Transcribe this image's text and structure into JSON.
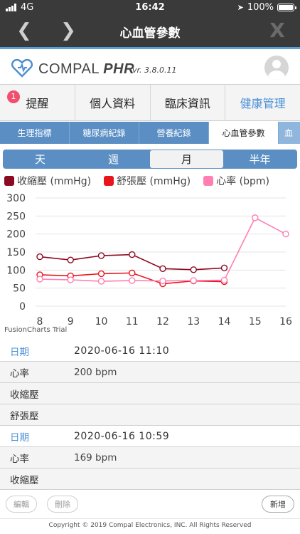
{
  "status_bar": {
    "carrier": "4G",
    "time": "16:42",
    "battery": "100%"
  },
  "nav": {
    "title": "心血管參數",
    "close_label": "X"
  },
  "brand": {
    "name_regular": "COMPAL ",
    "name_bold": "PHR",
    "version": "vr. 3.8.0.11",
    "logo_color": "#4a8fd0"
  },
  "main_tabs": [
    {
      "label": "提醒",
      "badge": "1"
    },
    {
      "label": "個人資料"
    },
    {
      "label": "臨床資訊"
    },
    {
      "label": "健康管理"
    }
  ],
  "sub_tabs": [
    "生理指標",
    "糖尿病紀錄",
    "營養紀錄",
    "心血管參數",
    "血"
  ],
  "period_tabs": [
    "天",
    "週",
    "月",
    "半年"
  ],
  "legend": [
    {
      "label": "收縮壓 (mmHg)",
      "color": "#8b0a22"
    },
    {
      "label": "舒張壓 (mmHg)",
      "color": "#e8161c"
    },
    {
      "label": "心率 (bpm)",
      "color": "#ff7fb3"
    }
  ],
  "chart_data": {
    "type": "line",
    "x": [
      8,
      9,
      10,
      11,
      12,
      13,
      14,
      15,
      16
    ],
    "ylim": [
      0,
      300
    ],
    "yticks": [
      0,
      50,
      100,
      150,
      200,
      250,
      300
    ],
    "grid": true,
    "legend_position": "top-left",
    "series": [
      {
        "name": "收縮壓 (mmHg)",
        "color": "#8b0a22",
        "values": [
          137,
          128,
          140,
          143,
          104,
          101,
          106,
          null,
          null
        ]
      },
      {
        "name": "舒張壓 (mmHg)",
        "color": "#e8161c",
        "values": [
          87,
          84,
          90,
          92,
          62,
          70,
          68,
          null,
          null
        ]
      },
      {
        "name": "心率 (bpm)",
        "color": "#ff7fb3",
        "values": [
          75,
          73,
          69,
          71,
          70,
          71,
          72,
          245,
          200
        ]
      }
    ]
  },
  "trial_text": "FusionCharts Trial",
  "records": [
    {
      "date_label": "日期",
      "date": "2020-06-16 11:10",
      "rows": [
        {
          "label": "心率",
          "value": "200 bpm"
        },
        {
          "label": "收縮壓",
          "value": ""
        },
        {
          "label": "舒張壓",
          "value": ""
        }
      ]
    },
    {
      "date_label": "日期",
      "date": "2020-06-16 10:59",
      "rows": [
        {
          "label": "心率",
          "value": "169 bpm"
        },
        {
          "label": "收縮壓",
          "value": ""
        }
      ]
    }
  ],
  "toolbar": {
    "edit": "編輯",
    "delete": "刪除",
    "add": "新增"
  },
  "copyright": "Copyright © 2019 Compal Electronics, INC. All Rights Reserved"
}
